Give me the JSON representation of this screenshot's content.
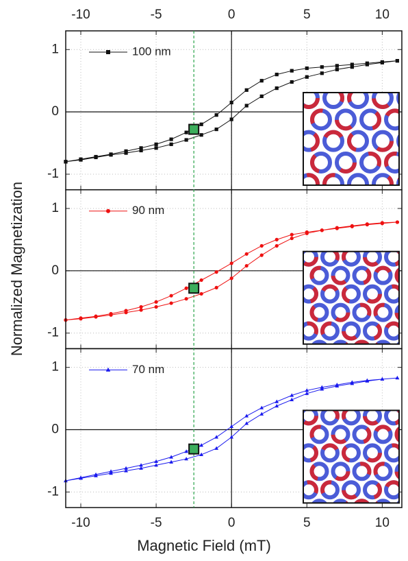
{
  "figure": {
    "xlabel": "Magnetic Field (mT)",
    "ylabel": "Normalized Magnetization",
    "vline": {
      "x": -2.5,
      "color": "#2aa34a"
    }
  },
  "chart_data": [
    {
      "type": "line",
      "xlim": [
        -11,
        11.3
      ],
      "ylim": [
        -1.25,
        1.3
      ],
      "xticks": [
        -10,
        -5,
        0,
        5,
        10
      ],
      "yticks": [
        -1,
        0,
        1
      ],
      "grid": true,
      "zero_lines": true,
      "x": [
        11,
        10,
        9,
        8,
        7,
        6,
        5,
        4,
        3,
        2,
        1,
        0,
        -1,
        -2,
        -3,
        -4,
        -5,
        -6,
        -7,
        -8,
        -9,
        -10,
        -11,
        -11,
        -10,
        -9,
        -8,
        -7,
        -6,
        -5,
        -4,
        -3,
        -2,
        -1,
        0,
        1,
        2,
        3,
        4,
        5,
        6,
        7,
        8,
        9,
        10,
        11
      ],
      "series": [
        {
          "name": "100 nm",
          "color": "#111111",
          "marker": "square",
          "values": [
            0.82,
            0.8,
            0.78,
            0.76,
            0.74,
            0.72,
            0.7,
            0.66,
            0.6,
            0.5,
            0.35,
            0.15,
            -0.05,
            -0.2,
            -0.33,
            -0.44,
            -0.52,
            -0.58,
            -0.63,
            -0.68,
            -0.72,
            -0.76,
            -0.8,
            -0.8,
            -0.77,
            -0.73,
            -0.69,
            -0.66,
            -0.62,
            -0.58,
            -0.52,
            -0.45,
            -0.37,
            -0.28,
            -0.12,
            0.1,
            0.25,
            0.38,
            0.48,
            0.56,
            0.62,
            0.68,
            0.72,
            0.76,
            0.79,
            0.82
          ]
        }
      ],
      "highlight": {
        "x": -2.5,
        "y": -0.28,
        "color": "#3cae5c"
      }
    },
    {
      "type": "line",
      "xlim": [
        -11,
        11.3
      ],
      "ylim": [
        -1.25,
        1.3
      ],
      "xticks": [
        -10,
        -5,
        0,
        5,
        10
      ],
      "yticks": [
        -1,
        0,
        1
      ],
      "grid": true,
      "zero_lines": true,
      "x": [
        11,
        10,
        9,
        8,
        7,
        6,
        5,
        4,
        3,
        2,
        1,
        0,
        -1,
        -2,
        -3,
        -4,
        -5,
        -6,
        -7,
        -8,
        -9,
        -10,
        -11,
        -11,
        -10,
        -9,
        -8,
        -7,
        -6,
        -5,
        -4,
        -3,
        -2,
        -1,
        0,
        1,
        2,
        3,
        4,
        5,
        6,
        7,
        8,
        9,
        10,
        11
      ],
      "series": [
        {
          "name": "90 nm",
          "color": "#ee1111",
          "marker": "circle",
          "values": [
            0.78,
            0.76,
            0.74,
            0.71,
            0.68,
            0.65,
            0.62,
            0.58,
            0.5,
            0.4,
            0.27,
            0.12,
            -0.02,
            -0.15,
            -0.28,
            -0.4,
            -0.5,
            -0.58,
            -0.64,
            -0.69,
            -0.73,
            -0.76,
            -0.79,
            -0.79,
            -0.77,
            -0.74,
            -0.71,
            -0.67,
            -0.63,
            -0.58,
            -0.52,
            -0.45,
            -0.37,
            -0.27,
            -0.12,
            0.08,
            0.25,
            0.4,
            0.52,
            0.6,
            0.65,
            0.69,
            0.72,
            0.75,
            0.77,
            0.78
          ]
        }
      ],
      "highlight": {
        "x": -2.5,
        "y": -0.28,
        "color": "#3cae5c"
      }
    },
    {
      "type": "line",
      "xlim": [
        -11,
        11.3
      ],
      "ylim": [
        -1.25,
        1.3
      ],
      "xticks": [
        -10,
        -5,
        0,
        5,
        10
      ],
      "yticks": [
        -1,
        0,
        1
      ],
      "grid": true,
      "zero_lines": true,
      "x": [
        11,
        10,
        9,
        8,
        7,
        6,
        5,
        4,
        3,
        2,
        1,
        0,
        -1,
        -2,
        -3,
        -4,
        -5,
        -6,
        -7,
        -8,
        -9,
        -10,
        -11,
        -11,
        -10,
        -9,
        -8,
        -7,
        -6,
        -5,
        -4,
        -3,
        -2,
        -1,
        0,
        1,
        2,
        3,
        4,
        5,
        6,
        7,
        8,
        9,
        10,
        11
      ],
      "series": [
        {
          "name": "70 nm",
          "color": "#1a1aee",
          "marker": "triangle",
          "values": [
            0.83,
            0.81,
            0.79,
            0.76,
            0.72,
            0.68,
            0.63,
            0.55,
            0.45,
            0.35,
            0.22,
            0.05,
            -0.12,
            -0.25,
            -0.35,
            -0.44,
            -0.51,
            -0.57,
            -0.62,
            -0.67,
            -0.72,
            -0.77,
            -0.82,
            -0.82,
            -0.78,
            -0.74,
            -0.7,
            -0.66,
            -0.62,
            -0.57,
            -0.52,
            -0.47,
            -0.4,
            -0.3,
            -0.12,
            0.1,
            0.25,
            0.38,
            0.48,
            0.58,
            0.65,
            0.7,
            0.74,
            0.78,
            0.81,
            0.83
          ]
        }
      ],
      "highlight": {
        "x": -2.5,
        "y": -0.31,
        "color": "#3cae5c"
      }
    }
  ]
}
